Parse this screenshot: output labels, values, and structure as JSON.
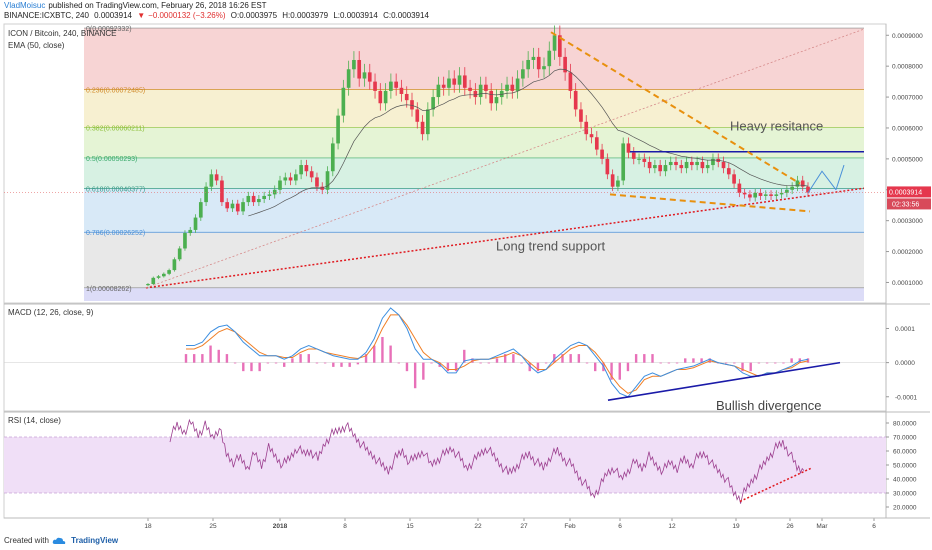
{
  "header": {
    "author": "VladMoisuc",
    "published": "published on TradingView.com, February 26, 2018 16:26 EST",
    "symbol": "BINANCE:ICXBTC, 240",
    "last": "0.0003914",
    "change": "−0.0000132 (−3.26%)",
    "open": "O:0.0003975",
    "high": "H:0.0003979",
    "low": "L:0.0003914",
    "close": "C:0.0003914"
  },
  "price_panel": {
    "title": "ICON / Bitcoin, 240, BINANCE",
    "indicator": "EMA (50, close)",
    "price_badge": "0.0003914",
    "time_badge": "02:33:56"
  },
  "macd_panel": {
    "title": "MACD (12, 26, close, 9)"
  },
  "rsi_panel": {
    "title": "RSI (14, close)"
  },
  "footer": {
    "created_with": "Created with",
    "brand": "TradingView"
  },
  "colors": {
    "candle_up": "#4caf50",
    "candle_down": "#e5374d",
    "resistance": "#1a1aa8",
    "support": "#e0191f",
    "wedge": "#e8900e",
    "ema": "#555555",
    "macd_line": "#3d8fe0",
    "signal_line": "#f07f26",
    "histogram": "#e040a0",
    "rsi_line": "#9c3f8f"
  },
  "chart_data": [
    {
      "type": "line",
      "panel": "price",
      "title": "ICON / Bitcoin, 240, BINANCE",
      "ylim": [
        4e-05,
        0.00093
      ],
      "y_ticks": [
        "0.0009000",
        "0.0008000",
        "0.0007000",
        "0.0006000",
        "0.0005000",
        "0.0004000",
        "0.0003000",
        "0.0002000",
        "0.0001000"
      ],
      "x_ticks": [
        "18",
        "25",
        "2018",
        "8",
        "15",
        "22",
        "27",
        "Feb",
        "6",
        "12",
        "19",
        "26",
        "Mar",
        "6"
      ],
      "fibonacci": [
        {
          "label": "0(0.00092332)",
          "value": 0.00092332
        },
        {
          "label": "0.236(0.00072485)",
          "value": 0.00072485
        },
        {
          "label": "0.382(0.00060211)",
          "value": 0.00060211
        },
        {
          "label": "0.5(0.00050293)",
          "value": 0.00050293
        },
        {
          "label": "0.618(0.00040377)",
          "value": 0.00040377
        },
        {
          "label": "0.786(0.00026252)",
          "value": 0.00026252
        },
        {
          "label": "1(0.00008262)",
          "value": 8.262e-05
        }
      ],
      "series": [
        {
          "name": "",
          "values": [
            9.5e-05,
            0.000115,
            0.00012,
            0.000128,
            0.00014,
            0.000175,
            0.00021,
            0.00026,
            0.00027,
            0.00031,
            0.00036,
            0.00041,
            0.00045,
            0.00043,
            0.00036,
            0.00034,
            0.000355,
            0.00033,
            0.00036,
            0.00038,
            0.00036,
            0.00037,
            0.00038,
            0.000385,
            0.0004,
            0.00043,
            0.00044,
            0.00043,
            0.00045,
            0.00048,
            0.00046,
            0.00044,
            0.00041,
            0.0004,
            0.00046,
            0.00055,
            0.00064,
            0.00073,
            0.00079,
            0.00082,
            0.00076,
            0.00078,
            0.00075,
            0.00072,
            0.00068,
            0.00072,
            0.00075,
            0.00073,
            0.00071,
            0.00069,
            0.00066,
            0.00062,
            0.00058,
            0.00066,
            0.0007,
            0.00074,
            0.00073,
            0.00076,
            0.00074,
            0.00077,
            0.00073,
            0.00072,
            0.0007,
            0.00074,
            0.00072,
            0.00068,
            0.0007,
            0.00072,
            0.00074,
            0.00072,
            0.00076,
            0.00079,
            0.00082,
            0.00083,
            0.00079,
            0.0008,
            0.00085,
            0.0009,
            0.00083,
            0.00078,
            0.00072,
            0.00066,
            0.00062,
            0.00058,
            0.00057,
            0.00053,
            0.0005,
            0.00045,
            0.00041,
            0.00043,
            0.00055,
            0.00052,
            0.0005,
            0.0005,
            0.00049,
            0.00047,
            0.00048,
            0.00046,
            0.00048,
            0.00049,
            0.00048,
            0.00047,
            0.00049,
            0.00048,
            0.00049,
            0.00047,
            0.00048,
            0.0005,
            0.00049,
            0.00047,
            0.00045,
            0.00042,
            0.00039,
            0.000385,
            0.000375,
            0.00039,
            0.00038,
            0.000385,
            0.00038,
            0.000385,
            0.00039,
            0.0004,
            0.00041,
            0.00043,
            0.00041,
            0.000391
          ]
        }
      ],
      "annotations": [
        "Heavy resitance",
        "Long trend support"
      ]
    },
    {
      "type": "line",
      "panel": "macd",
      "title": "MACD (12, 26, close, 9)",
      "ylim": [
        -0.00013,
        0.00016
      ],
      "y_ticks": [
        "0.0001",
        "0.0000",
        "-0.0001"
      ],
      "series": [
        {
          "name": "MACD",
          "values": [
            5e-05,
            5e-05,
            6e-05,
            9e-05,
            0.000105,
            0.00011,
            9e-05,
            6e-05,
            4e-05,
            2e-05,
            2e-05,
            2e-05,
            1e-05,
            2e-05,
            4e-05,
            5e-05,
            4e-05,
            3e-05,
            2e-05,
            1.5e-05,
            1e-05,
            1e-05,
            3e-05,
            7e-05,
            0.00013,
            0.00016,
            0.00014,
            0.0001,
            4e-05,
            1e-05,
            1e-05,
            -5e-06,
            -3e-05,
            -3e-05,
            5e-06,
            1e-05,
            1e-05,
            1e-05,
            2e-05,
            3e-05,
            4e-05,
            2e-05,
            -1e-05,
            -3e-05,
            -2e-05,
            1e-05,
            3e-05,
            5e-05,
            6e-05,
            5e-05,
            2e-05,
            -1e-05,
            -6e-05,
            -9e-05,
            -0.0001,
            -7e-05,
            -4e-05,
            -3e-05,
            -4e-05,
            -3e-05,
            -2e-05,
            -1.5e-05,
            -1e-05,
            0.0,
            1e-05,
            0.0,
            -5e-06,
            -1e-05,
            -3e-05,
            -4e-05,
            -4e-05,
            -3e-05,
            -3e-05,
            -2e-05,
            -1e-05,
            5e-06,
            1e-05
          ]
        },
        {
          "name": "Signal",
          "values": [
            4e-05,
            4e-05,
            5e-05,
            7e-05,
            9e-05,
            0.0001,
            9e-05,
            7e-05,
            5e-05,
            3e-05,
            2e-05,
            2e-05,
            1.5e-05,
            1.5e-05,
            3e-05,
            4e-05,
            4e-05,
            3e-05,
            2.5e-05,
            2e-05,
            1.5e-05,
            1.2e-05,
            2e-05,
            5e-05,
            0.0001,
            0.00014,
            0.00014,
            0.00011,
            7e-05,
            3e-05,
            1e-05,
            0.0,
            -2e-05,
            -2e-05,
            -1e-05,
            5e-06,
            1e-05,
            1e-05,
            1.5e-05,
            2e-05,
            3e-05,
            2e-05,
            0.0,
            -2e-05,
            -2e-05,
            0.0,
            2e-05,
            4e-05,
            5e-05,
            5e-05,
            3e-05,
            0.0,
            -4e-05,
            -7e-05,
            -9e-05,
            -8e-05,
            -5e-05,
            -4e-05,
            -4e-05,
            -3e-05,
            -2e-05,
            -2e-05,
            -1.5e-05,
            -5e-06,
            5e-06,
            0.0,
            -5e-06,
            -1e-05,
            -2e-05,
            -3e-05,
            -4e-05,
            -3e-05,
            -3e-05,
            -2e-05,
            -1.5e-05,
            0.0,
            5e-06
          ]
        }
      ],
      "annotations": [
        "Bullish divergence"
      ]
    },
    {
      "type": "line",
      "panel": "rsi",
      "title": "RSI (14, close)",
      "ylim": [
        15,
        85
      ],
      "y_ticks": [
        "80.0000",
        "70.0000",
        "60.0000",
        "50.0000",
        "40.0000",
        "30.0000",
        "20.0000"
      ],
      "series": [
        {
          "name": "",
          "values": [
            70,
            78,
            74,
            80,
            72,
            78,
            70,
            76,
            58,
            52,
            55,
            48,
            58,
            50,
            62,
            56,
            50,
            55,
            62,
            58,
            60,
            54,
            66,
            72,
            75,
            78,
            72,
            66,
            60,
            56,
            50,
            46,
            55,
            60,
            52,
            56,
            60,
            50,
            54,
            58,
            62,
            56,
            48,
            52,
            58,
            62,
            56,
            50,
            44,
            48,
            54,
            58,
            52,
            48,
            56,
            60,
            54,
            50,
            42,
            36,
            28,
            34,
            44,
            48,
            40,
            46,
            52,
            48,
            56,
            50,
            46,
            52,
            48,
            54,
            50,
            56,
            58,
            50,
            45,
            40,
            30,
            26,
            34,
            42,
            48,
            56,
            62,
            66,
            58,
            48,
            46
          ]
        }
      ]
    }
  ]
}
